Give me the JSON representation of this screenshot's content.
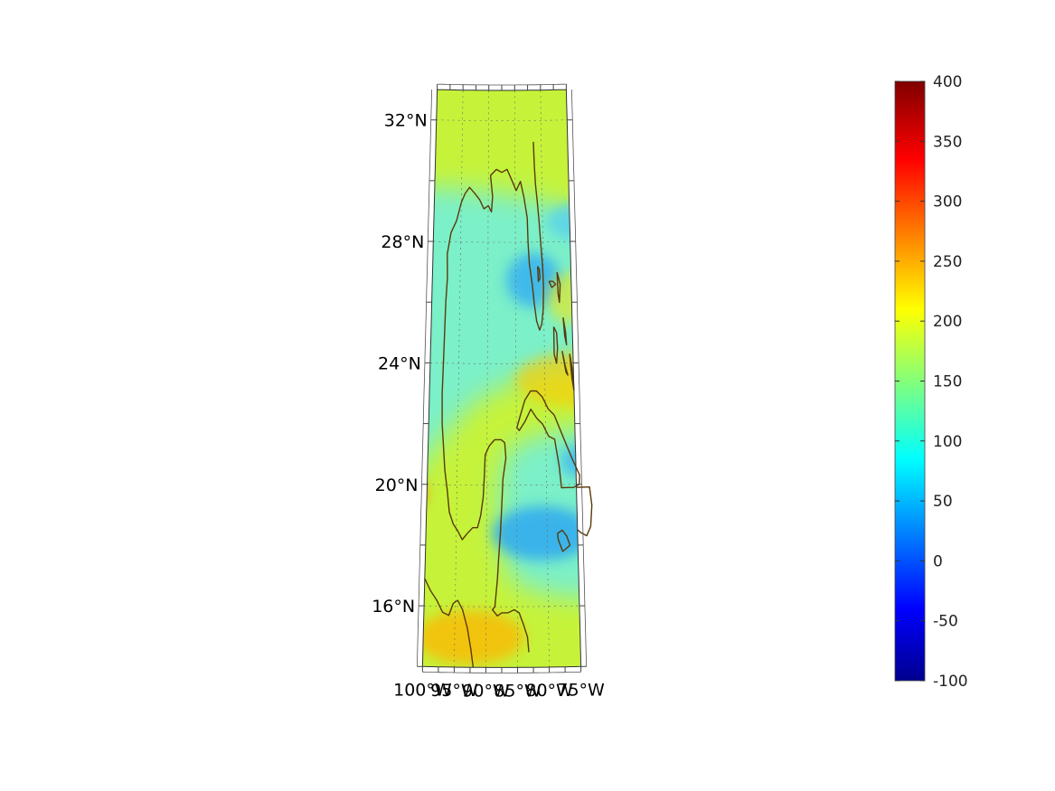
{
  "map": {
    "lat_labels": [
      {
        "lat": 32,
        "text": "32°N"
      },
      {
        "lat": 28,
        "text": "28°N"
      },
      {
        "lat": 24,
        "text": "24°N"
      },
      {
        "lat": 20,
        "text": "20°N"
      },
      {
        "lat": 16,
        "text": "16°N"
      }
    ],
    "lon_labels": [
      {
        "lon": -100,
        "text": "100°W"
      },
      {
        "lon": -95,
        "text": "95°W"
      },
      {
        "lon": -90,
        "text": "90°W"
      },
      {
        "lon": -85,
        "text": "85°W"
      },
      {
        "lon": -80,
        "text": "80°W"
      },
      {
        "lon": -75,
        "text": "75°W"
      }
    ],
    "extent": {
      "lon": [
        -100,
        -75
      ],
      "lat": [
        14,
        33
      ]
    },
    "field_background": "#c6f33a",
    "coast_color": "#5a3a0a",
    "grid": true
  },
  "colorbar": {
    "ticks": [
      "400",
      "350",
      "300",
      "250",
      "200",
      "150",
      "100",
      "50",
      "0",
      "-50",
      "-100"
    ],
    "range": [
      -100,
      400
    ],
    "colormap": "jet"
  }
}
